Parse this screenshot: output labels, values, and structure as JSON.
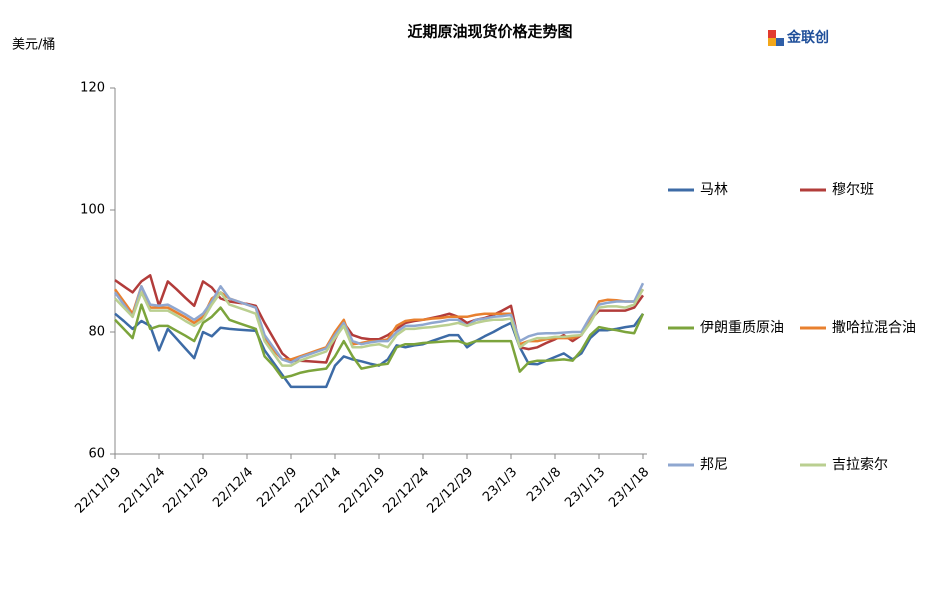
{
  "chart_data": {
    "type": "line",
    "title": "近期原油现货价格走势图",
    "y_label": "美元/桶",
    "logo": "金联创",
    "categories": [
      "22/11/19",
      null,
      null,
      null,
      null,
      "22/11/24",
      null,
      null,
      null,
      null,
      "22/11/29",
      null,
      null,
      null,
      null,
      "22/12/4",
      null,
      null,
      null,
      null,
      "22/12/9",
      null,
      null,
      null,
      null,
      "22/12/14",
      null,
      null,
      null,
      null,
      "22/12/19",
      null,
      null,
      null,
      null,
      "22/12/24",
      null,
      null,
      null,
      null,
      "22/12/29",
      null,
      null,
      null,
      null,
      "23/1/3",
      null,
      null,
      null,
      null,
      "23/1/8",
      null,
      null,
      null,
      null,
      "23/1/13",
      null,
      null,
      null,
      null,
      "23/1/18"
    ],
    "ylim": [
      60,
      120
    ],
    "yticks": [
      60,
      80,
      100,
      120
    ],
    "series": [
      {
        "name": "马林",
        "color": "#3d6ba6",
        "values": [
          83,
          81.8,
          80.5,
          81.8,
          81,
          77,
          80.5,
          78.9,
          77.3,
          75.7,
          80,
          79.3,
          80.7,
          80.5,
          80.4,
          80.3,
          80.2,
          77,
          75,
          73,
          71,
          71,
          71,
          71,
          71,
          74.5,
          76,
          75.5,
          75.2,
          74.8,
          74.5,
          75.5,
          77.8,
          77.5,
          77.8,
          78,
          78.5,
          79,
          79.5,
          79.5,
          77.5,
          78.5,
          79.3,
          80,
          80.8,
          81.5,
          77.5,
          74.8,
          74.7,
          75.3,
          75.9,
          76.5,
          75.5,
          76.5,
          79,
          80.3,
          80.3,
          80.5,
          80.8,
          81,
          83
        ]
      },
      {
        "name": "穆尔班",
        "color": "#b23c3a",
        "values": [
          88.5,
          87.5,
          86.5,
          88.3,
          89.3,
          84.3,
          88.3,
          87,
          85.6,
          84.3,
          88.3,
          87.3,
          85.5,
          85,
          84.8,
          84.6,
          84.3,
          81.5,
          79,
          76.5,
          75.3,
          75.3,
          75.2,
          75.1,
          75,
          78.8,
          81.5,
          79.5,
          79,
          78.8,
          78.8,
          79.5,
          80.5,
          81.5,
          81.8,
          82,
          82.3,
          82.6,
          83,
          82.5,
          81.5,
          82,
          82.3,
          82.8,
          83.5,
          84.3,
          77.5,
          77.2,
          77.5,
          78.2,
          78.8,
          79.5,
          78.5,
          79.5,
          82,
          83.5,
          83.5,
          83.5,
          83.5,
          84,
          86
        ]
      },
      {
        "name": "伊朗重质原油",
        "color": "#7ca43c",
        "values": [
          82,
          80.5,
          79,
          84.5,
          80.5,
          81,
          81,
          80.2,
          79.4,
          78.5,
          81.5,
          82.5,
          84,
          82,
          81.5,
          81,
          80.5,
          76,
          74.5,
          72.5,
          72.8,
          73.3,
          73.6,
          73.8,
          74,
          76,
          78.5,
          76,
          74,
          74.3,
          74.6,
          74.8,
          77.5,
          78,
          78,
          78.2,
          78.3,
          78.4,
          78.5,
          78.5,
          78,
          78.5,
          78.5,
          78.5,
          78.5,
          78.5,
          73.5,
          75,
          75.3,
          75.3,
          75.4,
          75.5,
          75.3,
          77,
          79.5,
          80.8,
          80.5,
          80.3,
          80,
          79.8,
          83
        ]
      },
      {
        "name": "撒哈拉混合油",
        "color": "#e8802f",
        "values": [
          87,
          85,
          83,
          87.5,
          84,
          84,
          84,
          83.2,
          82.4,
          81.5,
          82.5,
          85.5,
          86.5,
          85.5,
          85,
          84.5,
          84,
          79,
          77,
          75.5,
          75.5,
          76,
          76.5,
          77,
          77.5,
          80,
          82,
          78,
          78.2,
          78.5,
          78.5,
          78.8,
          81,
          81.8,
          82,
          82,
          82.2,
          82.3,
          82.5,
          82.5,
          82.5,
          82.8,
          83,
          83,
          83,
          83,
          78,
          78.5,
          78.5,
          78.8,
          79,
          79,
          79,
          79.5,
          82,
          85,
          85.3,
          85.2,
          85,
          85,
          87
        ]
      },
      {
        "name": "邦尼",
        "color": "#8fa7d0",
        "values": [
          86.5,
          84.5,
          82.5,
          87.5,
          84.5,
          84.3,
          84.5,
          83.7,
          82.9,
          82,
          83,
          85,
          87.5,
          85.5,
          85,
          84.5,
          84,
          79.5,
          77.5,
          75.5,
          75,
          75.8,
          76.3,
          76.8,
          77.3,
          79.5,
          81.5,
          78.5,
          78,
          78.3,
          78.5,
          78.5,
          80,
          81,
          81,
          81.2,
          81.5,
          81.7,
          82,
          82,
          81,
          82,
          82.2,
          82.5,
          82.6,
          82.8,
          78.5,
          79.3,
          79.7,
          79.8,
          79.8,
          79.9,
          80,
          80,
          82.5,
          84.5,
          84.8,
          85,
          85,
          85,
          88
        ]
      },
      {
        "name": "吉拉索尔",
        "color": "#bacf90",
        "values": [
          85.5,
          84,
          82.5,
          86.5,
          83.5,
          83.5,
          83.5,
          82.7,
          81.8,
          81,
          82,
          84.5,
          86.5,
          84.5,
          84,
          83.5,
          83,
          78.5,
          76.5,
          74.5,
          74.5,
          75.3,
          75.8,
          76.3,
          76.8,
          79,
          81,
          77.5,
          77.5,
          77.8,
          78,
          77.5,
          79.5,
          80.5,
          80.5,
          80.7,
          80.8,
          81,
          81.2,
          81.5,
          81,
          81.5,
          81.8,
          82,
          82,
          82.2,
          77.5,
          78.5,
          79,
          79,
          79.2,
          79.2,
          79.4,
          79.5,
          81.5,
          84,
          84.2,
          84.2,
          84,
          84.5,
          87
        ]
      }
    ],
    "legend": "right"
  }
}
